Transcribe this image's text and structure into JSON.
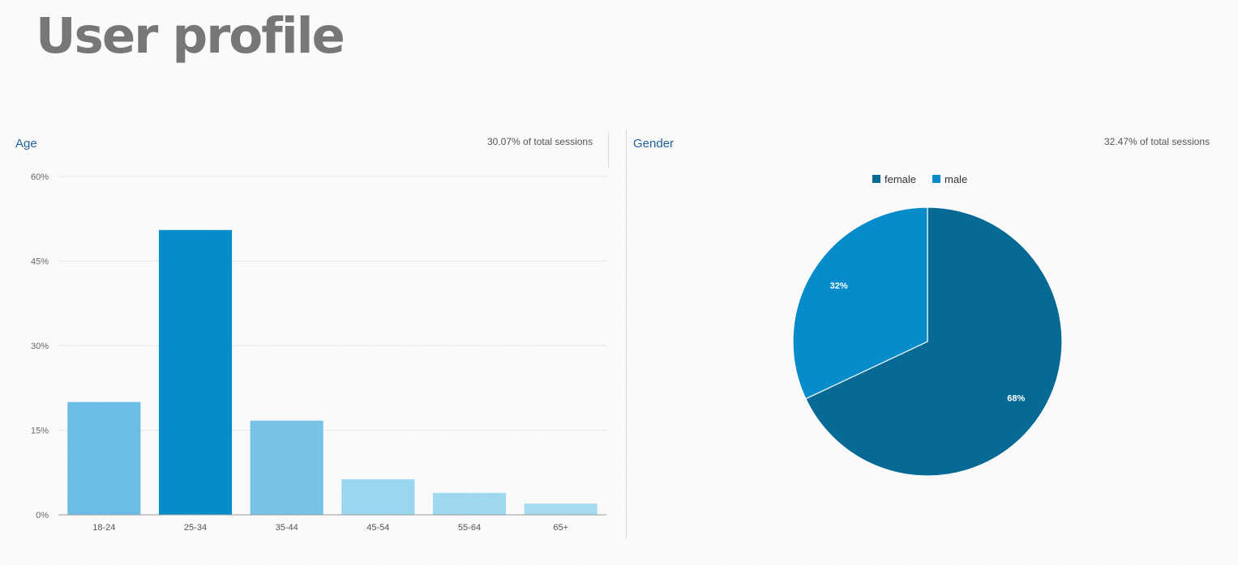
{
  "page": {
    "title": "User profile"
  },
  "age_panel": {
    "title": "Age",
    "sessions_text": "30.07% of total sessions"
  },
  "gender_panel": {
    "title": "Gender",
    "sessions_text": "32.47% of total sessions"
  },
  "chart_data": [
    {
      "type": "bar",
      "title": "Age",
      "categories": [
        "18-24",
        "25-34",
        "35-44",
        "45-54",
        "55-64",
        "65+"
      ],
      "values": [
        20,
        50.5,
        16.7,
        6.3,
        3.9,
        2.0
      ],
      "ylim": [
        0,
        60
      ],
      "ytick_values": [
        0,
        15,
        30,
        45,
        60
      ],
      "ytick_labels": [
        "0%",
        "15%",
        "30%",
        "45%",
        "60%"
      ],
      "colors": [
        "#6bbde6",
        "#068ccb",
        "#76c3e6",
        "#9bd6f0",
        "#a1d8f1",
        "#a6dbf2"
      ],
      "xlabel": "",
      "ylabel": "",
      "grid": true
    },
    {
      "type": "pie",
      "title": "Gender",
      "labels": [
        "female",
        "male"
      ],
      "values": [
        68,
        32
      ],
      "slice_labels": [
        "68%",
        "32%"
      ],
      "colors": [
        "#066a94",
        "#068ccb"
      ],
      "legend_position": "top"
    }
  ]
}
